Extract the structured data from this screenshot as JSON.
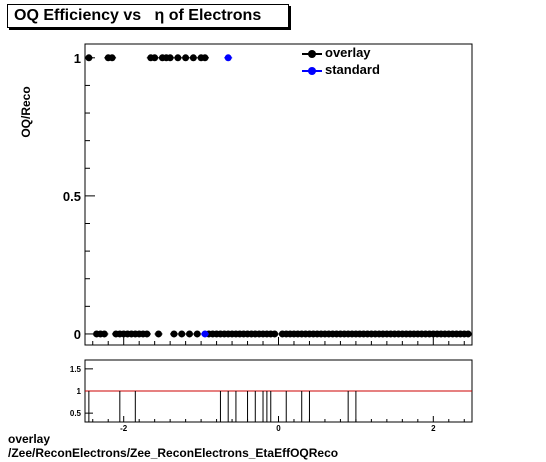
{
  "title": {
    "prefix": "OQ Efficiency vs",
    "symbol": "η",
    "suffix": "of Electrons"
  },
  "ylabel": "OQ/Reco",
  "legend": [
    {
      "name": "overlay",
      "color": "#000000"
    },
    {
      "name": "standard",
      "color": "#0000ff"
    }
  ],
  "footer": {
    "line1": "overlay",
    "line2": "/Zee/ReconElectrons/Zee_ReconElectrons_EtaEffOQReco"
  },
  "chart_data": [
    {
      "type": "scatter",
      "xlim": [
        -2.5,
        2.5
      ],
      "ylim": [
        -0.04,
        1.05
      ],
      "yticks": [
        0,
        0.5,
        1
      ],
      "ytick_labels": [
        "0",
        "0.5",
        "1"
      ],
      "xticks": [],
      "series": [
        {
          "name": "overlay",
          "color": "#000000",
          "x": [
            -2.45,
            -2.35,
            -2.3,
            -2.25,
            -2.2,
            -2.15,
            -2.1,
            -2.05,
            -2.0,
            -1.95,
            -1.9,
            -1.85,
            -1.8,
            -1.75,
            -1.7,
            -1.65,
            -1.6,
            -1.55,
            -1.5,
            -1.45,
            -1.4,
            -1.35,
            -1.3,
            -1.25,
            -1.2,
            -1.15,
            -1.1,
            -1.05,
            -1.0,
            -0.95,
            -0.9,
            -0.85,
            -0.8,
            -0.75,
            -0.7,
            -0.65,
            -0.6,
            -0.55,
            -0.5,
            -0.45,
            -0.4,
            -0.35,
            -0.3,
            -0.25,
            -0.2,
            -0.15,
            -0.1,
            -0.05,
            0.05,
            0.1,
            0.15,
            0.2,
            0.25,
            0.3,
            0.35,
            0.4,
            0.45,
            0.5,
            0.55,
            0.6,
            0.65,
            0.7,
            0.75,
            0.8,
            0.85,
            0.9,
            0.95,
            1.0,
            1.05,
            1.1,
            1.15,
            1.2,
            1.25,
            1.3,
            1.35,
            1.4,
            1.45,
            1.5,
            1.55,
            1.6,
            1.65,
            1.7,
            1.75,
            1.8,
            1.85,
            1.9,
            1.95,
            2.0,
            2.05,
            2.1,
            2.15,
            2.2,
            2.25,
            2.3,
            2.35,
            2.4,
            2.45
          ],
          "y": [
            1,
            0,
            0,
            0,
            1,
            1,
            0,
            0,
            0,
            0,
            0,
            0,
            0,
            0,
            0,
            1,
            1,
            0,
            1,
            1,
            1,
            0,
            1,
            0,
            1,
            0,
            1,
            0,
            1,
            1,
            0,
            0,
            0,
            0,
            0,
            0,
            0,
            0,
            0,
            0,
            0,
            0,
            0,
            0,
            0,
            0,
            0,
            0,
            0,
            0,
            0,
            0,
            0,
            0,
            0,
            0,
            0,
            0,
            0,
            0,
            0,
            0,
            0,
            0,
            0,
            0,
            0,
            0,
            0,
            0,
            0,
            0,
            0,
            0,
            0,
            0,
            0,
            0,
            0,
            0,
            0,
            0,
            0,
            0,
            0,
            0,
            0,
            0,
            0,
            0,
            0,
            0,
            0,
            0,
            0,
            0,
            0
          ]
        },
        {
          "name": "standard",
          "color": "#0000ff",
          "x": [
            -0.95,
            -0.65
          ],
          "y": [
            0,
            1
          ]
        }
      ]
    },
    {
      "type": "line",
      "xlim": [
        -2.5,
        2.5
      ],
      "ylim": [
        0.3,
        1.7
      ],
      "yticks": [
        0.5,
        1,
        1.5
      ],
      "ytick_labels": [
        "0.5",
        "1",
        "1.5"
      ],
      "xticks": [
        -2,
        0,
        2
      ],
      "xtick_labels": [
        "-2",
        "0",
        "2"
      ],
      "reference_line": {
        "y": 1,
        "color": "#cc0000"
      },
      "ratio_bins": [
        -2.45,
        -2.05,
        -1.85,
        -0.75,
        -0.65,
        -0.55,
        -0.4,
        -0.3,
        -0.2,
        -0.15,
        -0.1,
        0.1,
        0.3,
        0.4,
        0.9,
        1.0
      ]
    }
  ]
}
